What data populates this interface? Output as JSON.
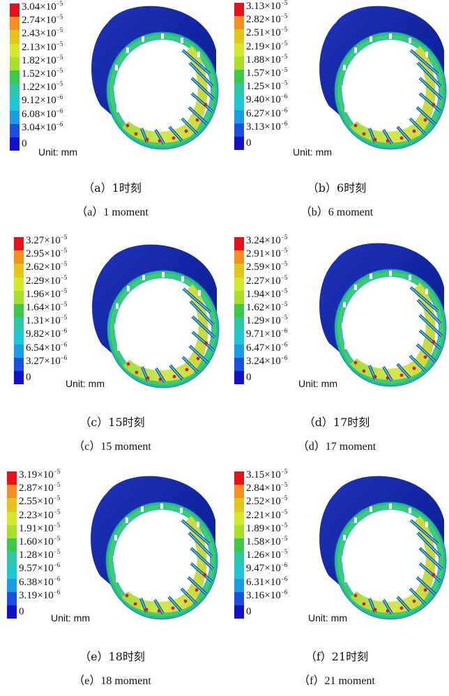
{
  "panels": [
    {
      "legend_values": [
        "3.04×10",
        "2.74×10",
        "2.43×10",
        "2.13×10",
        "1.82×10",
        "1.52×10",
        "1.22×10",
        "9.12×10",
        "6.08×10",
        "3.04×10"
      ],
      "legend_exponents": [
        "−5",
        "−5",
        "−5",
        "−5",
        "−5",
        "−5",
        "−5",
        "−6",
        "−6",
        "−6"
      ],
      "legend_zero": "0",
      "unit": "Unit: mm",
      "caption_cn": "（a）1时刻",
      "caption_en": "（a）1 moment"
    },
    {
      "legend_values": [
        "3.13×10",
        "2.82×10",
        "2.51×10",
        "2.19×10",
        "1.88×10",
        "1.57×10",
        "1.25×10",
        "9.40×10",
        "6.27×10",
        "3.13×10"
      ],
      "legend_exponents": [
        "−5",
        "−5",
        "−5",
        "−5",
        "−5",
        "−5",
        "−5",
        "−6",
        "−6",
        "−6"
      ],
      "legend_zero": "0",
      "unit": "Unit: mm",
      "caption_cn": "（b）6时刻",
      "caption_en": "（b）6 moment"
    },
    {
      "legend_values": [
        "3.27×10",
        "2.95×10",
        "2.62×10",
        "2.29×10",
        "1.96×10",
        "1.64×10",
        "1.31×10",
        "9.82×10",
        "6.54×10",
        "3.27×10"
      ],
      "legend_exponents": [
        "−5",
        "−5",
        "−5",
        "−5",
        "−5",
        "−5",
        "−5",
        "−6",
        "−6",
        "−6"
      ],
      "legend_zero": "0",
      "unit": "Unit: mm",
      "caption_cn": "（c）15时刻",
      "caption_en": "（c）15 moment"
    },
    {
      "legend_values": [
        "3.24×10",
        "2.91×10",
        "2.59×10",
        "2.27×10",
        "1.94×10",
        "1.62×10",
        "1.29×10",
        "9.71×10",
        "6.47×10",
        "3.24×10"
      ],
      "legend_exponents": [
        "−5",
        "−5",
        "−5",
        "−5",
        "−5",
        "−5",
        "−5",
        "−6",
        "−6",
        "−6"
      ],
      "legend_zero": "0",
      "unit": "Unit: mm",
      "caption_cn": "（d）17时刻",
      "caption_en": "（d）17 moment"
    },
    {
      "legend_values": [
        "3.19×10",
        "2.87×10",
        "2.55×10",
        "2.23×10",
        "1.91×10",
        "1.60×10",
        "1.28×10",
        "9.57×10",
        "6.38×10",
        "3.19×10"
      ],
      "legend_exponents": [
        "−5",
        "−5",
        "−5",
        "−5",
        "−5",
        "−5",
        "−5",
        "−6",
        "−6",
        "−6"
      ],
      "legend_zero": "0",
      "unit": "Unit: mm",
      "caption_cn": "（e）18时刻",
      "caption_en": "（e）18 moment"
    },
    {
      "legend_values": [
        "3.15×10",
        "2.84×10",
        "2.52×10",
        "2.21×10",
        "1.89×10",
        "1.58×10",
        "1.26×10",
        "9.47×10",
        "6.31×10",
        "3.16×10"
      ],
      "legend_exponents": [
        "−5",
        "−5",
        "−5",
        "−5",
        "−5",
        "−5",
        "−5",
        "−6",
        "−6",
        "−6"
      ],
      "legend_zero": "0",
      "unit": "Unit: mm",
      "caption_cn": "（f）21时刻",
      "caption_en": "（f）21 moment"
    }
  ],
  "legend_colors": [
    "#e8101a",
    "#f59020",
    "#e3c51a",
    "#d6e82a",
    "#a6e02a",
    "#3ec84a",
    "#2cc9a8",
    "#1cc8d6",
    "#1a9be6",
    "#1a4fe0",
    "#1010c8"
  ]
}
